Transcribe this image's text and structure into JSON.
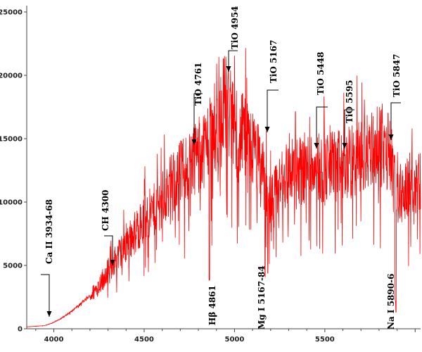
{
  "chart_data": {
    "type": "line",
    "title": "",
    "xlabel": "",
    "ylabel": "",
    "xlim": [
      3850,
      6030
    ],
    "ylim": [
      0,
      25500
    ],
    "grid": false,
    "line_color": "#ff0000",
    "x_ticks": [
      4000,
      4500,
      5000,
      5500
    ],
    "x_tick_labels": [
      "4000",
      "4500",
      "5000",
      "5500"
    ],
    "y_ticks": [
      0,
      5000,
      10000,
      15000,
      20000,
      25000
    ],
    "y_tick_labels": [
      "0",
      "5000",
      "10000",
      "15000",
      "20000",
      "25000"
    ],
    "series": [
      {
        "name": "",
        "x": [
          3850,
          3900,
          3950,
          4000,
          4050,
          4100,
          4150,
          4200,
          4250,
          4300,
          4350,
          4400,
          4450,
          4500,
          4550,
          4600,
          4650,
          4700,
          4750,
          4800,
          4850,
          4900,
          4950,
          5000,
          5050,
          5100,
          5150,
          5200,
          5250,
          5300,
          5350,
          5400,
          5450,
          5500,
          5550,
          5600,
          5650,
          5700,
          5750,
          5800,
          5850,
          5880,
          5900,
          5950,
          6000,
          6030
        ],
        "y": [
          150,
          200,
          250,
          500,
          900,
          1400,
          2000,
          2600,
          3500,
          4800,
          5800,
          6800,
          7800,
          8800,
          9500,
          10500,
          11500,
          12500,
          13500,
          14000,
          15000,
          16500,
          18500,
          16000,
          15500,
          14500,
          13000,
          10000,
          11500,
          12500,
          12800,
          13000,
          13300,
          12800,
          13300,
          13000,
          13500,
          14000,
          14500,
          14700,
          14500,
          12000,
          10500,
          11500,
          12000,
          12200
        ]
      }
    ],
    "annotations": [
      {
        "label": "Ca II 3934-68",
        "x": 3955,
        "kind": "emission-arrow"
      },
      {
        "label": "CH 4300",
        "x": 4315,
        "kind": "emission-arrow"
      },
      {
        "label": "TiO 4761",
        "x": 4760,
        "kind": "band-arrow"
      },
      {
        "label": "TiO 4954",
        "x": 4950,
        "kind": "band-arrow"
      },
      {
        "label": "TiO 5167",
        "x": 5167,
        "kind": "band-arrow"
      },
      {
        "label": "TiO 5448",
        "x": 5448,
        "kind": "band-arrow"
      },
      {
        "label": "TiO 5595",
        "x": 5595,
        "kind": "band-arrow"
      },
      {
        "label": "TiO 5847",
        "x": 5847,
        "kind": "band-arrow"
      },
      {
        "label": "Hβ 4861",
        "x": 4861,
        "kind": "line-label"
      },
      {
        "label": "Mg I  5167-84",
        "x": 5175,
        "kind": "line-label"
      },
      {
        "label": "Na I 5890-6",
        "x": 5893,
        "kind": "line-label"
      }
    ]
  }
}
